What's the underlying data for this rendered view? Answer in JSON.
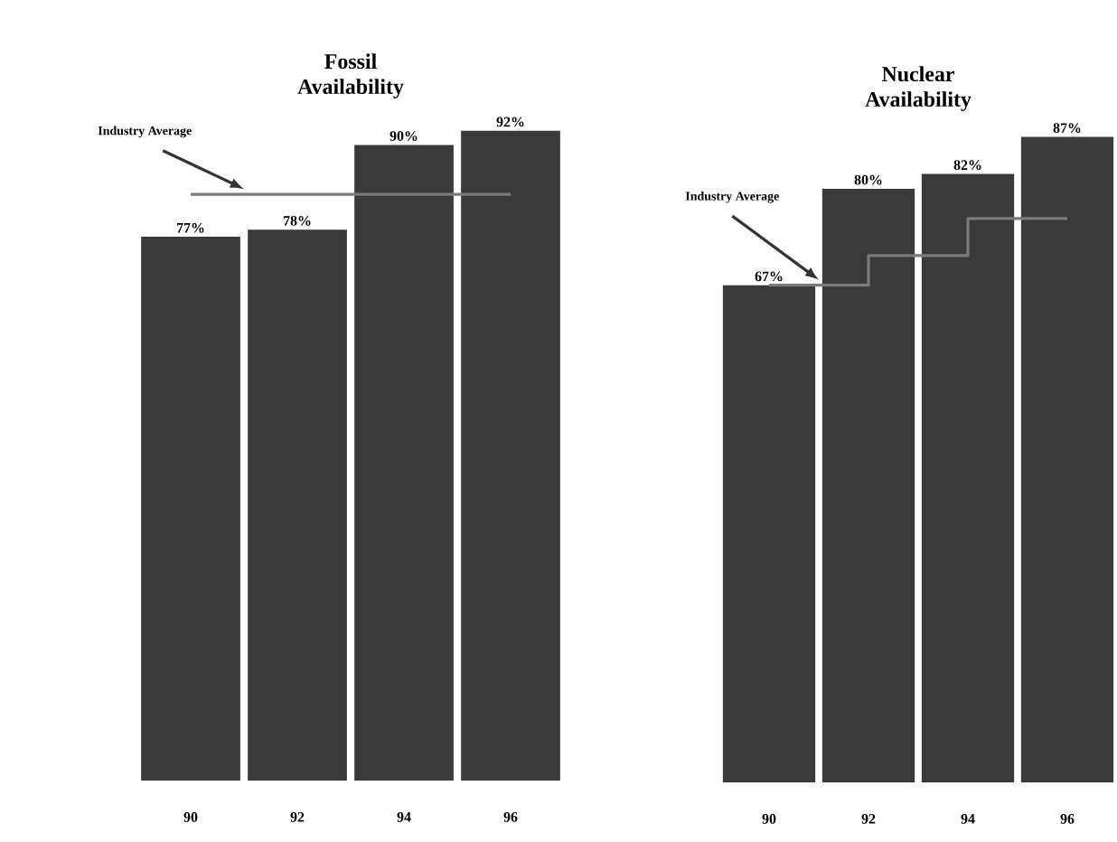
{
  "chart_data": [
    {
      "type": "bar",
      "title": "Fossil Availability",
      "categories": [
        "90",
        "92",
        "94",
        "96"
      ],
      "tick_labels": "x",
      "series": [
        {
          "color": "#3a3a3a",
          "values": [
            77,
            78,
            90,
            92
          ],
          "value_labels": [
            "77%",
            "78%",
            "90%",
            "92%"
          ]
        },
        {
          "type": "step",
          "name": "Industry Average",
          "color": "#7a7a7a",
          "values": [
            83,
            83,
            83,
            83
          ]
        }
      ]
    },
    {
      "type": "bar",
      "title": "Nuclear Availability",
      "categories": [
        "90",
        "92",
        "94",
        "96"
      ],
      "tick_labels": "x",
      "series": [
        {
          "color": "#3a3a3a",
          "values": [
            67,
            80,
            82,
            87
          ],
          "value_labels": [
            "67%",
            "80%",
            "82%",
            "87%"
          ]
        },
        {
          "type": "step",
          "name": "Industry Average",
          "color": "#7a7a7a",
          "values": [
            67,
            71,
            76,
            76
          ]
        }
      ]
    }
  ]
}
